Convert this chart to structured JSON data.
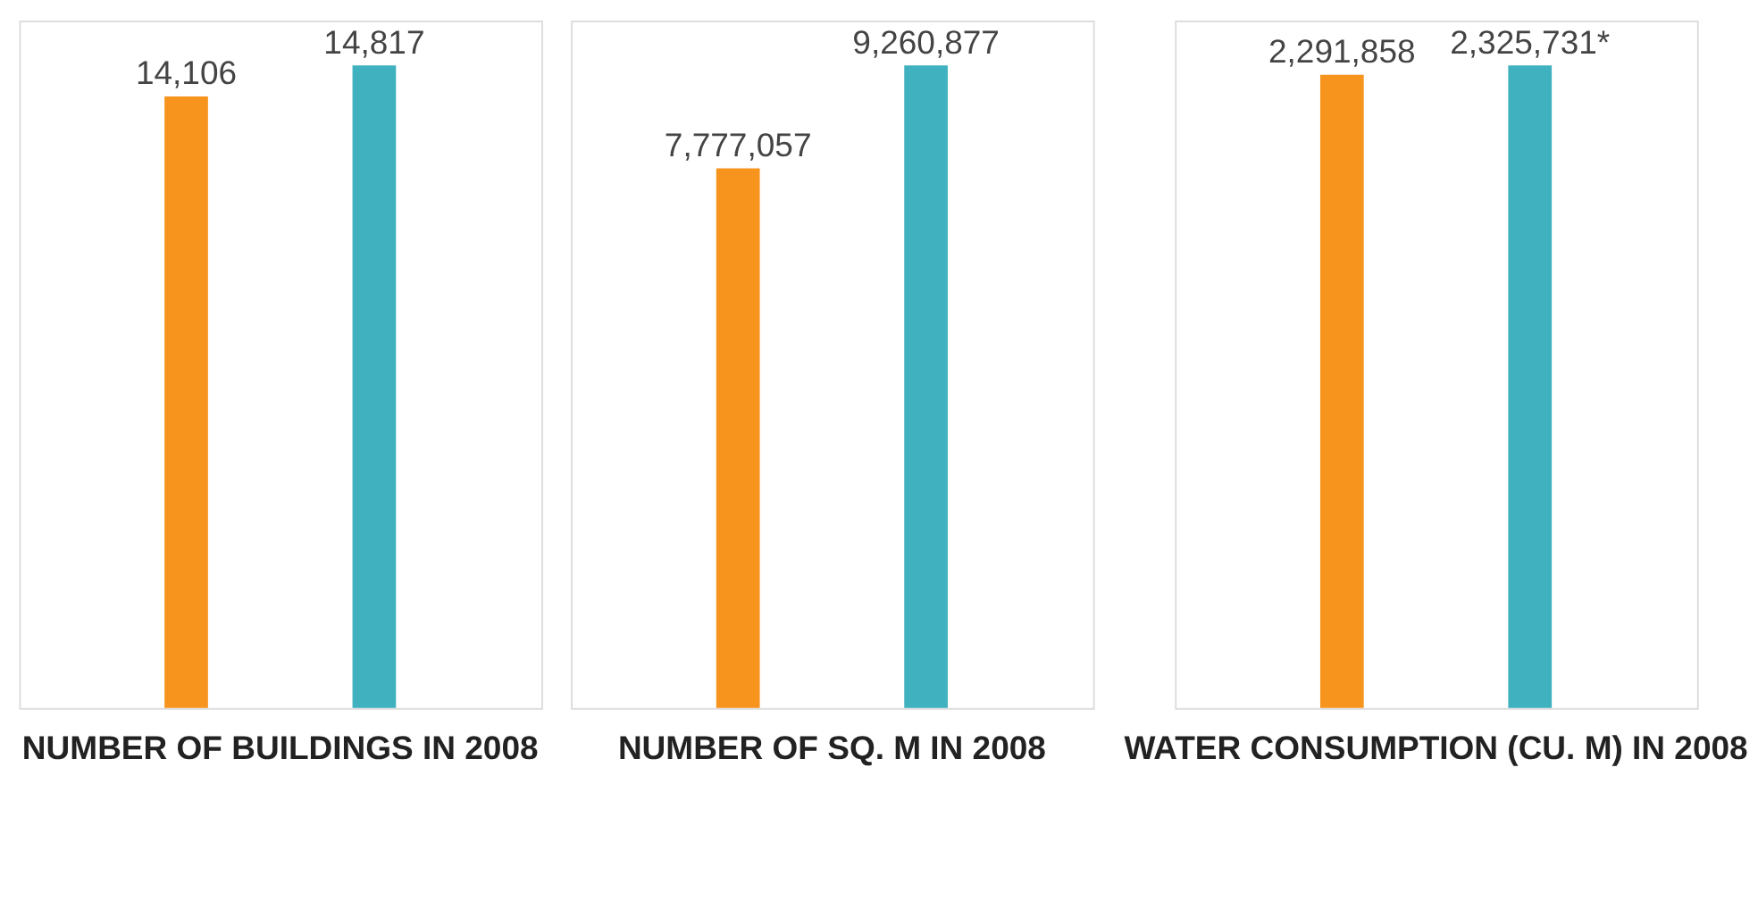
{
  "chart_data": [
    {
      "type": "bar",
      "categories": [
        "NUMBER OF BUILDINGS IN 2008"
      ],
      "series": [
        {
          "color": "#f7941d",
          "values": [
            14106
          ],
          "value_labels": [
            "14,106"
          ]
        },
        {
          "color": "#40b1bf",
          "values": [
            14817
          ],
          "value_labels": [
            "14,817"
          ]
        }
      ],
      "legend": false,
      "grid": false
    },
    {
      "type": "bar",
      "categories": [
        "NUMBER OF SQ. M IN 2008"
      ],
      "series": [
        {
          "color": "#f7941d",
          "values": [
            7777057
          ],
          "value_labels": [
            "7,777,057"
          ]
        },
        {
          "color": "#40b1bf",
          "values": [
            9260877
          ],
          "value_labels": [
            "9,260,877"
          ]
        }
      ],
      "legend": false,
      "grid": false
    },
    {
      "type": "bar",
      "categories": [
        "WATER CONSUMPTION (CU. M) IN 2008"
      ],
      "series": [
        {
          "color": "#f7941d",
          "values": [
            2291858
          ],
          "value_labels": [
            "2,291,858"
          ]
        },
        {
          "color": "#40b1bf",
          "values": [
            2325731
          ],
          "value_labels": [
            "2,325,731*"
          ]
        }
      ],
      "legend": false,
      "grid": false
    }
  ]
}
